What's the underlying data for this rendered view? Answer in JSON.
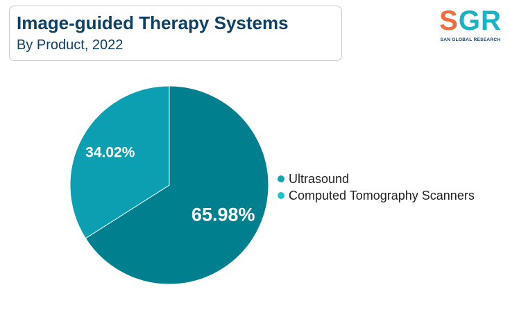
{
  "header": {
    "title": "Image-guided Therapy Systems",
    "subtitle": "By Product, 2022"
  },
  "logo": {
    "text": "SGR",
    "tagline": "SAN GLOBAL RESEARCH",
    "colors": [
      "#f26b3a",
      "#17b2c3"
    ]
  },
  "chart_data": {
    "type": "pie",
    "title": "Image-guided Therapy Systems",
    "subtitle": "By Product, 2022",
    "categories": [
      "Ultrasound",
      "Computed Tomography Scanners"
    ],
    "values": [
      65.98,
      34.02
    ],
    "labels": [
      "65.98%",
      "34.02%"
    ],
    "colors": [
      "#007f8f",
      "#0c9fb1"
    ],
    "legend_colors": [
      "#0fa6ad",
      "#20c3c9"
    ],
    "legend_position": "right"
  }
}
